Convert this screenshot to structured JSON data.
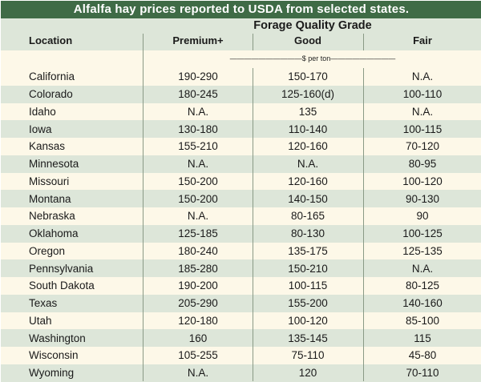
{
  "title": "Alfalfa hay prices reported to USDA from selected states.",
  "group_header": "Forage Quality Grade",
  "columns": {
    "location": "Location",
    "premium": "Premium+",
    "good": "Good",
    "fair": "Fair"
  },
  "unit_label": "——————————$ per ton—————————",
  "rows": [
    {
      "location": "California",
      "premium": "190-290",
      "good": "150-170",
      "fair": "N.A."
    },
    {
      "location": "Colorado",
      "premium": "180-245",
      "good": "125-160(d)",
      "fair": "100-110"
    },
    {
      "location": "Idaho",
      "premium": "N.A.",
      "good": "135",
      "fair": "N.A."
    },
    {
      "location": "Iowa",
      "premium": "130-180",
      "good": "110-140",
      "fair": "100-115"
    },
    {
      "location": "Kansas",
      "premium": "155-210",
      "good": "120-160",
      "fair": "70-120"
    },
    {
      "location": "Minnesota",
      "premium": "N.A.",
      "good": "N.A.",
      "fair": "80-95"
    },
    {
      "location": "Missouri",
      "premium": "150-200",
      "good": "120-160",
      "fair": "100-120"
    },
    {
      "location": "Montana",
      "premium": "150-200",
      "good": "140-150",
      "fair": "90-130"
    },
    {
      "location": "Nebraska",
      "premium": "N.A.",
      "good": "80-165",
      "fair": "90"
    },
    {
      "location": "Oklahoma",
      "premium": "125-185",
      "good": "80-130",
      "fair": "100-125"
    },
    {
      "location": "Oregon",
      "premium": "180-240",
      "good": "135-175",
      "fair": "125-135"
    },
    {
      "location": "Pennsylvania",
      "premium": "185-280",
      "good": "150-210",
      "fair": "N.A."
    },
    {
      "location": "South Dakota",
      "premium": "190-200",
      "good": "100-115",
      "fair": "80-125"
    },
    {
      "location": "Texas",
      "premium": "205-290",
      "good": "155-200",
      "fair": "140-160"
    },
    {
      "location": "Utah",
      "premium": "120-180",
      "good": "100-120",
      "fair": "85-100"
    },
    {
      "location": "Washington",
      "premium": "160",
      "good": "135-145",
      "fair": "115"
    },
    {
      "location": "Wisconsin",
      "premium": "105-255",
      "good": "75-110",
      "fair": "45-80"
    },
    {
      "location": "Wyoming",
      "premium": "N.A.",
      "good": "120",
      "fair": "70-110"
    }
  ]
}
